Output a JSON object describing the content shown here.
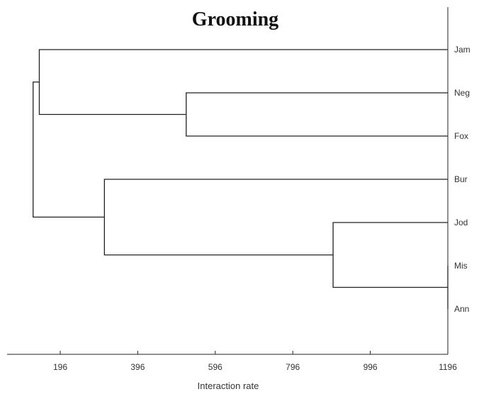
{
  "chart_data": {
    "type": "dendrogram",
    "title": "Grooming",
    "xlabel": "Interaction rate",
    "xlim": [
      106,
      1196
    ],
    "xticks": [
      196,
      396,
      596,
      796,
      996,
      1196
    ],
    "tick_labels": [
      "196",
      "396",
      "596",
      "796",
      "996",
      "1196"
    ],
    "leaves": [
      "Jam",
      "Neg",
      "Fox",
      "Bur",
      "Jod",
      "Mis",
      "Ann"
    ],
    "merges": [
      {
        "members": [
          "Mis",
          "Ann"
        ],
        "height": 1196
      },
      {
        "members": [
          "Jod",
          "Mis+Ann"
        ],
        "height": 900
      },
      {
        "members": [
          "Neg",
          "Fox"
        ],
        "height": 521
      },
      {
        "members": [
          "Bur",
          "Jod+Mis+Ann"
        ],
        "height": 310
      },
      {
        "members": [
          "Jam",
          "Neg+Fox"
        ],
        "height": 142
      },
      {
        "members": [
          "Jam+Neg+Fox",
          "Bur+Jod+Mis+Ann"
        ],
        "height": 126
      }
    ]
  }
}
